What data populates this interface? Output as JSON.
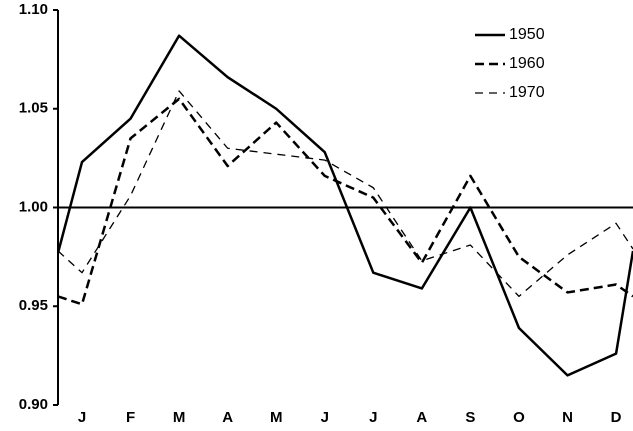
{
  "chart_data": {
    "type": "line",
    "categories": [
      null,
      "J",
      "F",
      "M",
      "A",
      "M",
      "J",
      "J",
      "A",
      "S",
      "O",
      "N",
      "D",
      null
    ],
    "series": [
      {
        "name": "1950",
        "color": "#000000",
        "dash": "solid",
        "linewidth": 2.5,
        "values": [
          0.977,
          1.023,
          1.045,
          1.087,
          1.066,
          1.05,
          1.028,
          0.967,
          0.959,
          1.0,
          0.939,
          0.915,
          0.926,
          0.978
        ]
      },
      {
        "name": "1960",
        "color": "#000000",
        "dash": "dashed",
        "linewidth": 2.5,
        "values": [
          0.955,
          0.951,
          1.035,
          1.055,
          1.021,
          1.043,
          1.016,
          1.005,
          0.972,
          1.016,
          0.975,
          0.957,
          0.961,
          0.955
        ]
      },
      {
        "name": "1970",
        "color": "#000000",
        "dash": "dashed",
        "linewidth": 1.3,
        "values": [
          0.978,
          0.967,
          1.006,
          1.059,
          1.03,
          1.027,
          1.024,
          1.01,
          0.973,
          0.981,
          0.955,
          0.976,
          0.992,
          0.979
        ]
      }
    ],
    "ylim": [
      0.9,
      1.1
    ],
    "yticks": [
      {
        "value": 0.9,
        "label": "0.90"
      },
      0.95,
      {
        "value": 1.0,
        "label": "1.00"
      },
      1.05,
      {
        "value": 1.1,
        "label": "1.10"
      }
    ],
    "hline": 1,
    "legend": "top-right"
  }
}
